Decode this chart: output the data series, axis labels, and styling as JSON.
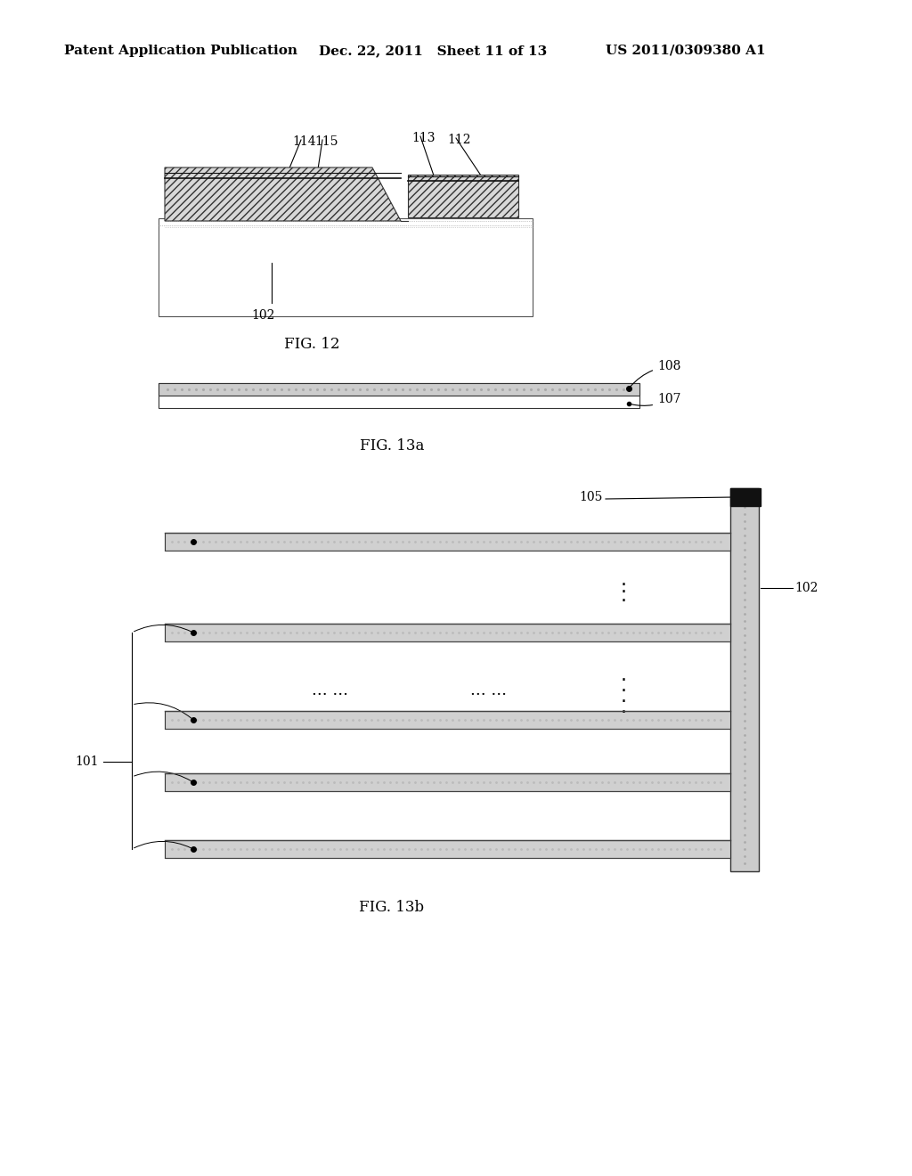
{
  "bg_color": "#ffffff",
  "header_left": "Patent Application Publication",
  "header_center": "Dec. 22, 2011   Sheet 11 of 13",
  "header_right": "US 2011/0309380 A1",
  "fig12_label": "FIG. 12",
  "fig13a_label": "FIG. 13a",
  "fig13b_label": "FIG. 13b"
}
